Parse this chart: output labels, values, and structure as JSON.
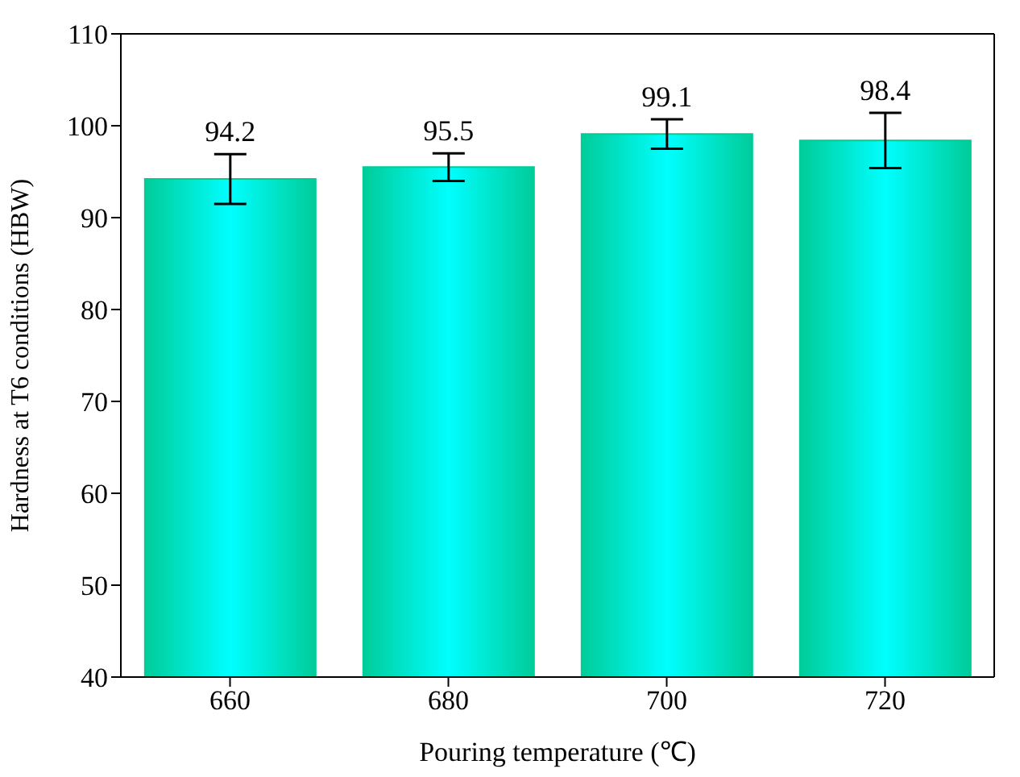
{
  "chart_data": {
    "type": "bar",
    "xlabel": "Pouring temperature (℃)",
    "ylabel": "Hardness at T6 conditions (HBW)",
    "categories": [
      "660",
      "680",
      "700",
      "720"
    ],
    "values": [
      94.2,
      95.5,
      99.1,
      98.4
    ],
    "errors": [
      2.7,
      1.5,
      1.6,
      3.0
    ],
    "color": "#00cc99",
    "data_labels": true,
    "ylim": [
      40,
      110
    ],
    "yticks": [
      40,
      50,
      60,
      70,
      80,
      90,
      100,
      110
    ],
    "grid": false
  }
}
